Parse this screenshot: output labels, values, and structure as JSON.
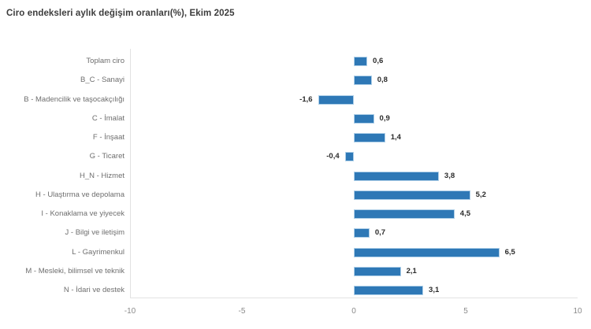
{
  "chart_data": {
    "type": "bar",
    "orientation": "horizontal",
    "title": "Ciro endeksleri aylık değişim oranları(%), Ekim 2025",
    "categories": [
      "Toplam ciro",
      "B_C - Sanayi",
      "B - Madencilik ve taşocakçılığı",
      "C - İmalat",
      "F - İnşaat",
      "G - Ticaret",
      "H_N - Hizmet",
      "H - Ulaştırma ve depolama",
      "I - Konaklama ve yiyecek",
      "J - Bilgi ve iletişim",
      "L - Gayrimenkul",
      "M - Mesleki, bilimsel ve teknik",
      "N - İdari ve destek"
    ],
    "values": [
      0.6,
      0.8,
      -1.6,
      0.9,
      1.4,
      -0.4,
      3.8,
      5.2,
      4.5,
      0.7,
      6.5,
      2.1,
      3.1
    ],
    "value_labels": [
      "0,6",
      "0,8",
      "-1,6",
      "0,9",
      "1,4",
      "-0,4",
      "3,8",
      "5,2",
      "4,5",
      "0,7",
      "6,5",
      "2,1",
      "3,1"
    ],
    "xlabel": "",
    "ylabel": "",
    "xlim": [
      -10,
      10
    ],
    "x_tick_values": [
      -10,
      -5,
      0,
      5,
      10
    ],
    "x_tick_labels": [
      "-10",
      "-5",
      "0",
      "5",
      "10"
    ],
    "grid": "off",
    "legend": "none",
    "colors": {
      "bar_fill": "#2e78b6",
      "bar_border": "#aecfe8",
      "title_text": "#3c3c3c",
      "category_text": "#6e6e6e",
      "value_text": "#2b2b2b",
      "axis_text": "#8a8a8a",
      "axis_line": "#e2e2e2",
      "background": "#ffffff"
    }
  }
}
